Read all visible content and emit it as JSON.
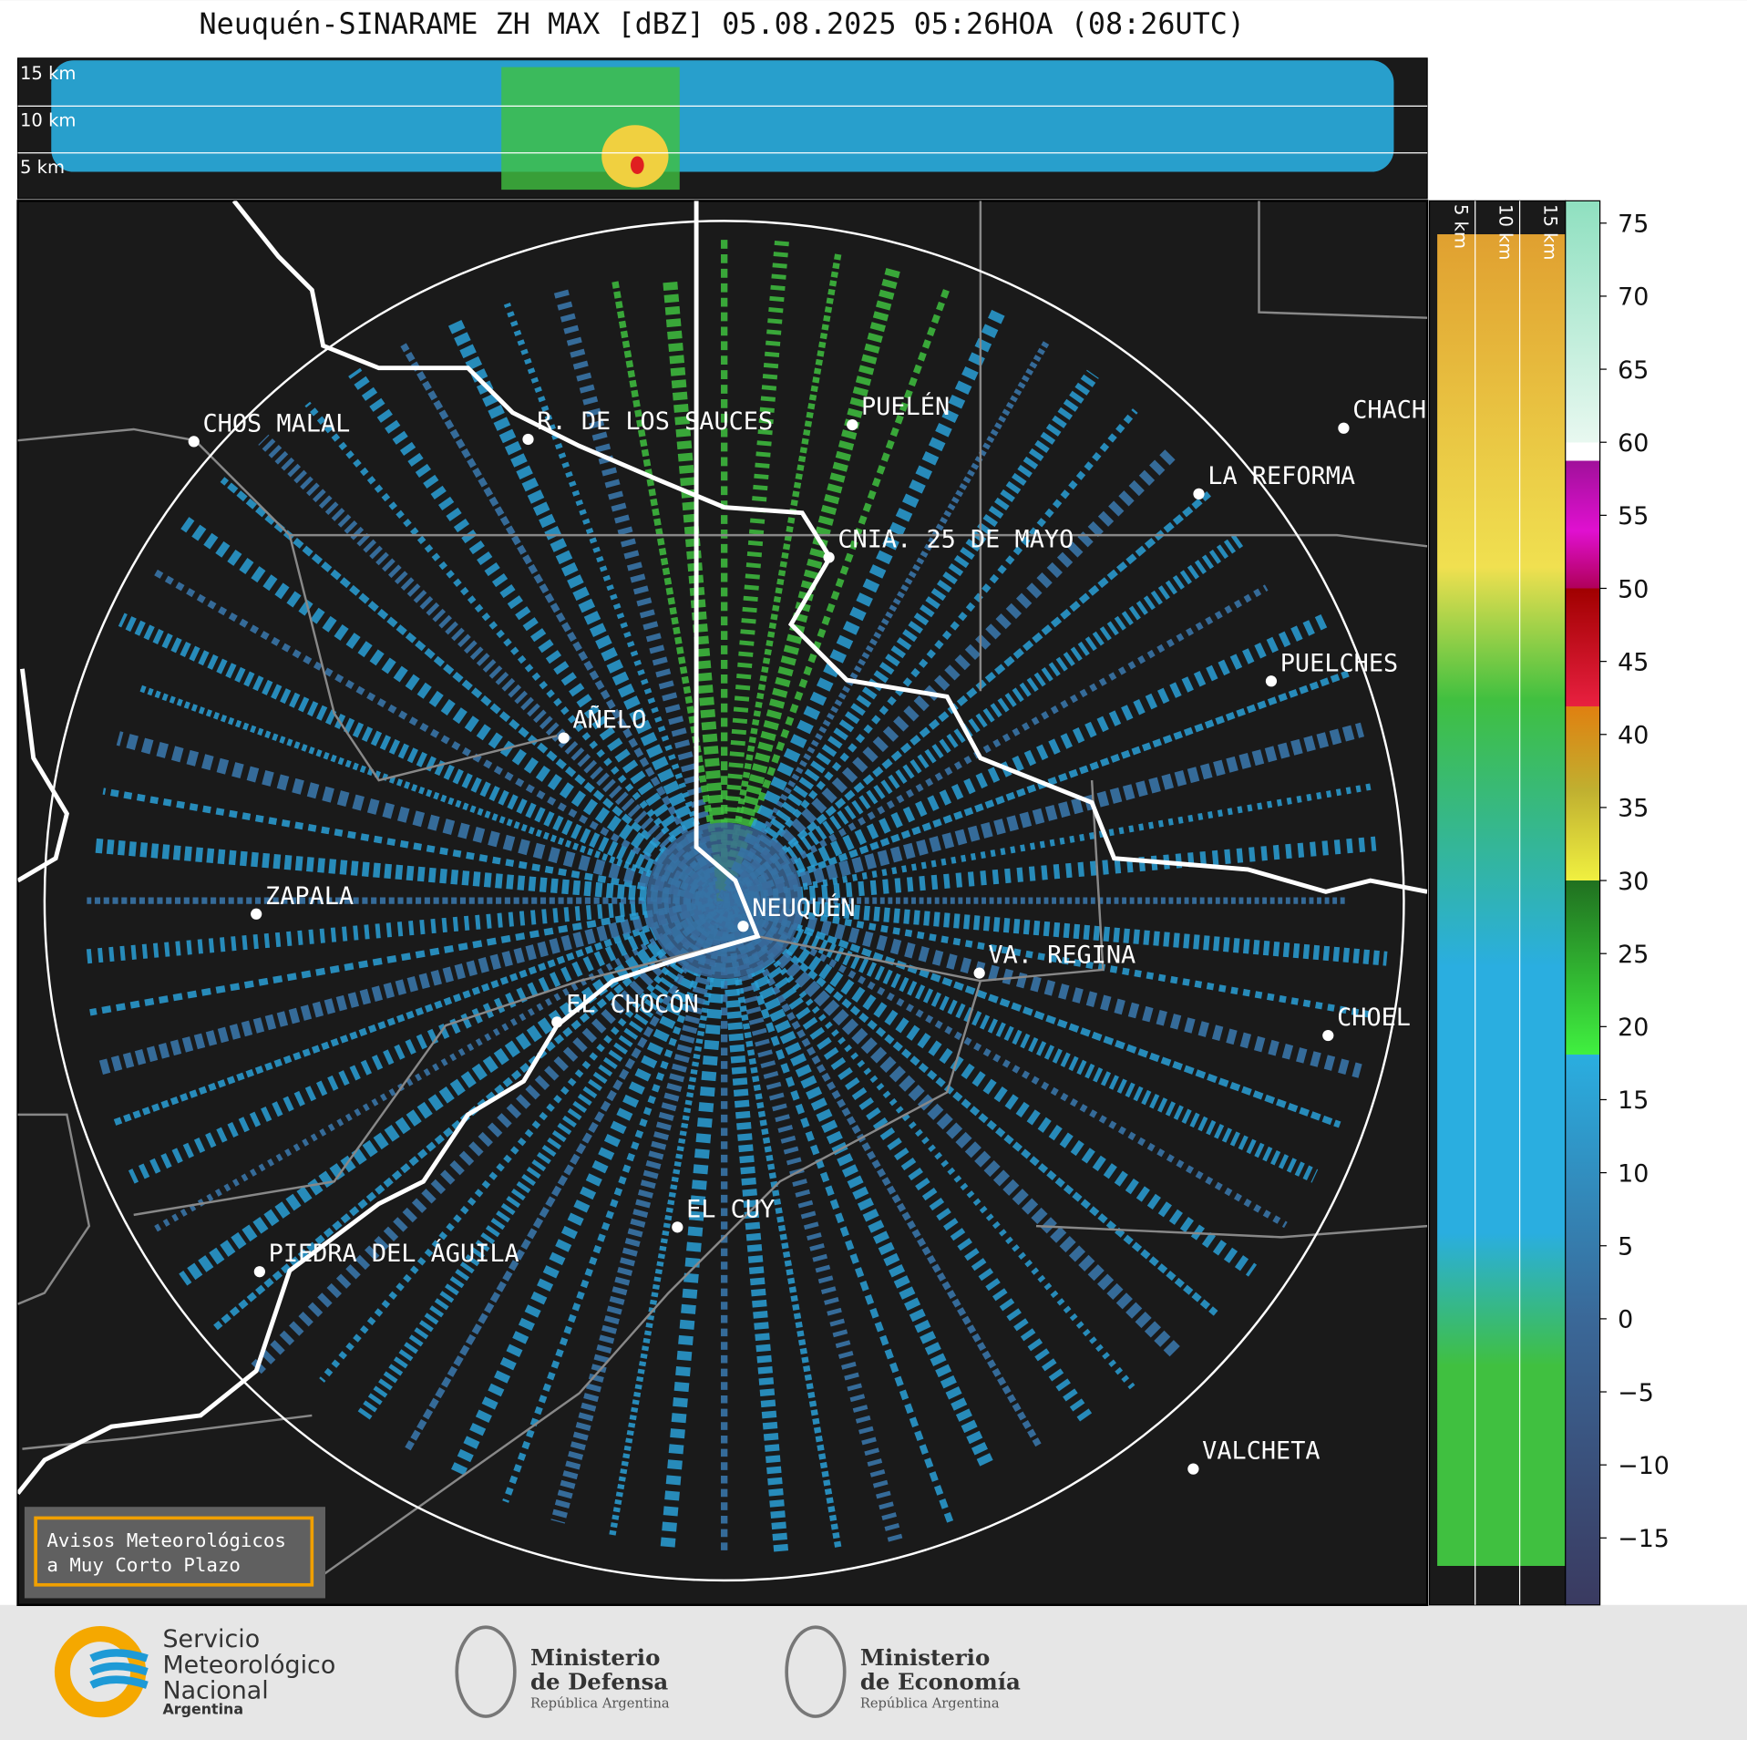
{
  "header": {
    "title": "Neuquén-SINARAME ZH MAX [dBZ] 05.08.2025 05:26HOA (08:26UTC)"
  },
  "top_panel": {
    "height_labels": [
      "15 km",
      "10 km",
      "5 km"
    ]
  },
  "side_panel": {
    "height_labels": [
      "5 km",
      "10 km",
      "15 km"
    ]
  },
  "map": {
    "cities": [
      "CHOS MALAL",
      "R. DE LOS SAUCES",
      "PUELÉN",
      "CHACH",
      "LA REFORMA",
      "CNIA. 25 DE MAYO",
      "PUELCHES",
      "AÑELO",
      "ZAPALA",
      "NEUQUÉN",
      "VA. REGINA",
      "EL CHOCÓN",
      "CHOEL",
      "EL CUY",
      "PIEDRA DEL ÁGUILA",
      "VALCHETA"
    ]
  },
  "colorbar": {
    "ticks": [
      "75",
      "70",
      "65",
      "60",
      "55",
      "50",
      "45",
      "40",
      "35",
      "30",
      "25",
      "20",
      "15",
      "10",
      "5",
      "0",
      "−5",
      "−10",
      "−15"
    ]
  },
  "notice": {
    "lines": [
      "Avisos Meteorológicos",
      "a Muy Corto Plazo"
    ]
  },
  "footer": {
    "smn": [
      "Servicio",
      "Meteorológico",
      "Nacional",
      "Argentina"
    ],
    "defensa": [
      "Ministerio",
      "de Defensa",
      "República Argentina"
    ],
    "economia": [
      "Ministerio",
      "de Economía",
      "República Argentina"
    ]
  }
}
